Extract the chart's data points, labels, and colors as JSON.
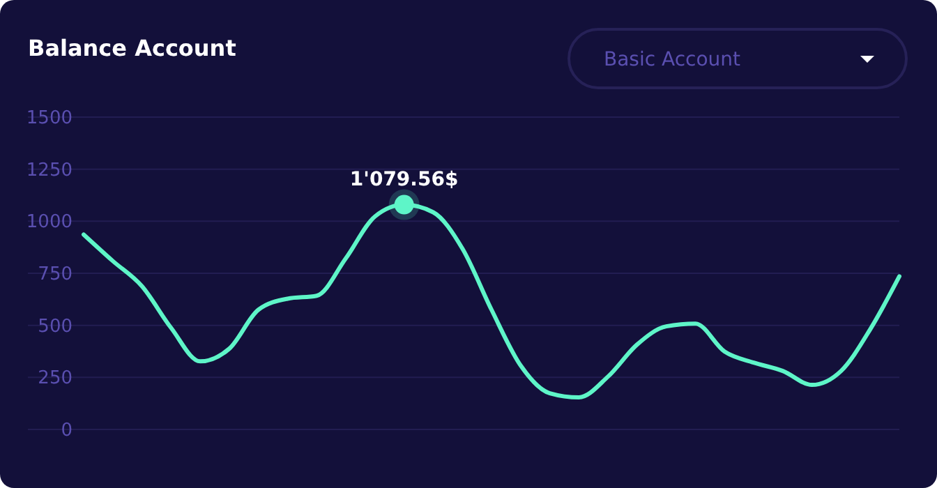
{
  "chart_data": {
    "type": "line",
    "title": "Balance Account",
    "annotations": [
      "Basic Account"
    ],
    "categories": [
      null,
      null,
      null,
      null,
      null,
      null,
      null,
      null,
      null,
      null,
      null,
      null,
      null,
      null,
      null,
      null,
      null,
      null,
      null,
      null,
      null,
      null,
      null,
      null,
      null,
      null,
      null,
      null,
      null
    ],
    "series": [
      {
        "color": "#5ef5c8",
        "values": [
          936,
          809,
          688,
          488,
          327,
          388,
          575,
          628,
          642,
          822,
          1023,
          1079.56,
          1043,
          869,
          575,
          307,
          174,
          154,
          254,
          408,
          495,
          508,
          374,
          321,
          281,
          214,
          281,
          481,
          735
        ],
        "value_labels": [
          null,
          null,
          null,
          null,
          null,
          null,
          null,
          null,
          null,
          null,
          null,
          "1'079.56$",
          null,
          null,
          null,
          null,
          null,
          null,
          null,
          null,
          null,
          null,
          null,
          null,
          null,
          null,
          null,
          null,
          null
        ]
      }
    ],
    "ylim": [
      0,
      1500
    ],
    "yticks": [
      0,
      250,
      500,
      750,
      1000,
      1250,
      1500
    ],
    "grid": "y",
    "marker": "none",
    "line_style": "solid"
  }
}
